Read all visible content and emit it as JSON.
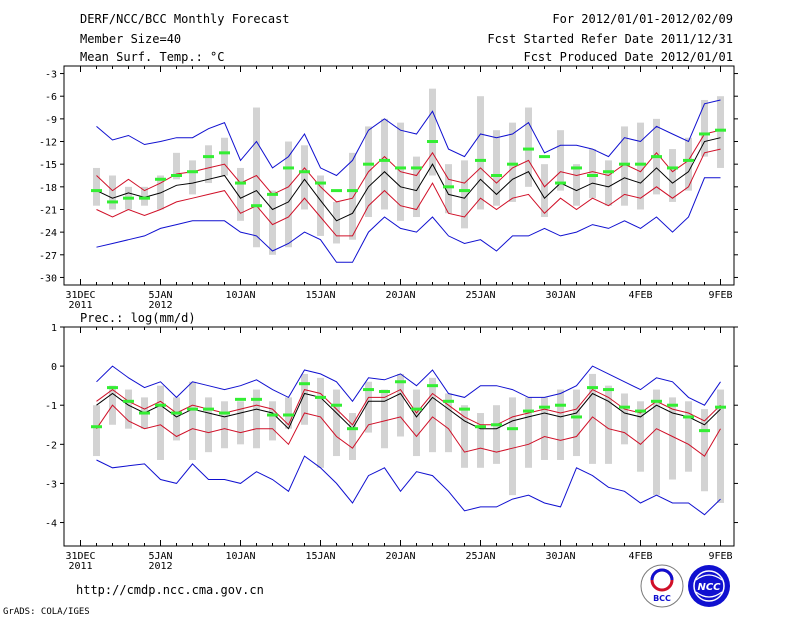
{
  "header": {
    "title": "DERF/NCC/BCC Monthly Forecast",
    "member_size": "Member Size=40",
    "date_range": "For 2012/01/01-2012/02/09",
    "started_refer": "Fcst Started Refer Date 2011/12/31",
    "produced": "Fcst Produced Date 2012/01/01"
  },
  "footer": {
    "url": "http://cmdp.ncc.cma.gov.cn",
    "grads": "GrADS: COLA/IGES",
    "logo_bcc": "BCC",
    "logo_ncc": "NCC"
  },
  "colors": {
    "blue": "#1010d0",
    "red": "#d01028",
    "black": "#000000",
    "green": "#33ee33",
    "gray": "#d3d3d3"
  },
  "chart_data": [
    {
      "type": "line",
      "title": "Mean Surf. Temp.: °C",
      "ylim": [
        -31,
        -2
      ],
      "yticks": [
        -3,
        -6,
        -9,
        -12,
        -15,
        -18,
        -21,
        -24,
        -27,
        -30
      ],
      "ytick_labels": [
        "-3",
        "-6",
        "-9",
        "-12",
        "-15",
        "-18",
        "-21",
        "-24",
        "-27",
        "-30"
      ],
      "x_day_range": [
        0,
        40
      ],
      "xticks": [
        {
          "day": 0,
          "label": "31DEC",
          "sub": "2011"
        },
        {
          "day": 5,
          "label": "5JAN",
          "sub": "2012"
        },
        {
          "day": 10,
          "label": "10JAN",
          "sub": ""
        },
        {
          "day": 15,
          "label": "15JAN",
          "sub": ""
        },
        {
          "day": 20,
          "label": "20JAN",
          "sub": ""
        },
        {
          "day": 25,
          "label": "25JAN",
          "sub": ""
        },
        {
          "day": 30,
          "label": "30JAN",
          "sub": ""
        },
        {
          "day": 35,
          "label": "4FEB",
          "sub": ""
        },
        {
          "day": 40,
          "label": "9FEB",
          "sub": ""
        }
      ],
      "series": [
        {
          "name": "max",
          "color": "blue",
          "values": [
            -10.0,
            -11.8,
            -11.2,
            -12.4,
            -12.0,
            -11.5,
            -11.5,
            -10.3,
            -9.5,
            -14.5,
            -12.0,
            -15.5,
            -14.0,
            -11.0,
            -15.5,
            -16.5,
            -14.5,
            -10.5,
            -9.0,
            -10.5,
            -11.0,
            -8.0,
            -13.0,
            -14.0,
            -11.0,
            -11.5,
            -11.0,
            -9.5,
            -13.5,
            -12.5,
            -12.5,
            -13.0,
            -14.0,
            -11.5,
            -12.0,
            -10.0,
            -11.0,
            -12.0,
            -7.0,
            -6.5
          ]
        },
        {
          "name": "upper",
          "color": "red",
          "values": [
            -16.5,
            -18.5,
            -17.0,
            -18.5,
            -17.5,
            -16.3,
            -16.0,
            -15.5,
            -15.0,
            -17.5,
            -16.5,
            -19.0,
            -18.0,
            -15.5,
            -18.0,
            -20.0,
            -19.5,
            -16.0,
            -14.0,
            -16.0,
            -16.5,
            -13.5,
            -17.0,
            -17.5,
            -15.5,
            -17.5,
            -15.5,
            -14.5,
            -18.0,
            -16.0,
            -16.5,
            -16.0,
            -16.5,
            -15.0,
            -16.0,
            -13.5,
            -16.0,
            -14.5,
            -11.0,
            -10.5
          ]
        },
        {
          "name": "mean",
          "color": "black",
          "values": [
            -18.5,
            -19.5,
            -18.8,
            -19.4,
            -18.8,
            -17.8,
            -17.5,
            -17.0,
            -16.5,
            -19.5,
            -18.5,
            -21.0,
            -20.0,
            -17.0,
            -19.8,
            -22.5,
            -21.5,
            -18.0,
            -16.0,
            -18.0,
            -18.5,
            -15.0,
            -19.0,
            -19.5,
            -17.0,
            -19.0,
            -17.0,
            -16.0,
            -19.5,
            -17.5,
            -18.5,
            -17.5,
            -18.0,
            -16.8,
            -17.5,
            -15.5,
            -17.5,
            -16.0,
            -12.0,
            -11.5
          ]
        },
        {
          "name": "lower",
          "color": "red",
          "values": [
            -21.0,
            -22.0,
            -21.0,
            -21.8,
            -21.0,
            -20.0,
            -19.5,
            -19.0,
            -18.5,
            -21.5,
            -20.5,
            -23.0,
            -22.0,
            -19.5,
            -22.0,
            -24.5,
            -24.5,
            -20.5,
            -18.5,
            -20.5,
            -21.0,
            -17.5,
            -21.5,
            -22.0,
            -19.5,
            -21.0,
            -19.5,
            -19.0,
            -21.5,
            -19.5,
            -21.0,
            -19.5,
            -20.5,
            -19.0,
            -19.5,
            -18.0,
            -19.5,
            -18.0,
            -13.5,
            -13.0
          ]
        },
        {
          "name": "min",
          "color": "blue",
          "values": [
            -26.0,
            -25.5,
            -25.0,
            -24.5,
            -23.5,
            -23.0,
            -22.5,
            -22.5,
            -22.5,
            -24.0,
            -24.5,
            -26.5,
            -25.5,
            -24.0,
            -25.0,
            -28.0,
            -28.0,
            -24.0,
            -22.0,
            -23.5,
            -24.0,
            -22.0,
            -24.5,
            -25.5,
            -25.0,
            -26.5,
            -24.5,
            -24.5,
            -23.5,
            -24.5,
            -24.0,
            -23.0,
            -23.5,
            -22.5,
            -23.5,
            -22.0,
            -24.0,
            -22.0,
            -16.8,
            -16.8
          ]
        }
      ],
      "bars_low": [
        -20.5,
        -21.0,
        -21.0,
        -20.5,
        -21.0,
        -17.0,
        -19.0,
        -17.5,
        -16.5,
        -22.5,
        -26.0,
        -27.0,
        -26.0,
        -21.0,
        -24.5,
        -25.5,
        -25.0,
        -22.0,
        -21.0,
        -22.5,
        -22.0,
        -16.5,
        -21.5,
        -23.5,
        -21.0,
        -20.5,
        -20.0,
        -18.0,
        -22.0,
        -18.5,
        -20.5,
        -19.5,
        -20.5,
        -20.5,
        -21.0,
        -19.0,
        -20.0,
        -18.5,
        -14.0,
        -15.5
      ],
      "bars_high": [
        -15.5,
        -16.5,
        -18.0,
        -18.0,
        -16.5,
        -13.5,
        -14.5,
        -12.5,
        -11.5,
        -15.5,
        -7.5,
        -18.5,
        -12.0,
        -12.5,
        -16.5,
        -20.0,
        -13.5,
        -10.0,
        -9.0,
        -9.5,
        -14.0,
        -5.0,
        -15.0,
        -14.5,
        -6.0,
        -10.5,
        -9.5,
        -7.5,
        -15.0,
        -10.5,
        -15.0,
        -13.0,
        -14.5,
        -10.0,
        -9.5,
        -9.0,
        -13.0,
        -11.5,
        -6.5,
        -6.0
      ],
      "green_marks": [
        -18.5,
        -20.0,
        -19.5,
        -19.5,
        -17.0,
        -16.5,
        -16.0,
        -14.0,
        -13.5,
        -17.5,
        -20.5,
        -19.0,
        -15.5,
        -16.0,
        -17.5,
        -18.5,
        -18.5,
        -15.0,
        -14.5,
        -15.5,
        -15.5,
        -12.0,
        -18.0,
        -18.5,
        -14.5,
        -16.5,
        -15.0,
        -13.0,
        -14.0,
        -17.5,
        -15.5,
        -16.5,
        -16.0,
        -15.0,
        -15.0,
        -14.0,
        -15.5,
        -14.5,
        -11.0,
        -10.5
      ]
    },
    {
      "type": "line",
      "title": "Prec.: log(mm/d)",
      "ylim": [
        -4.6,
        1.0
      ],
      "yticks": [
        1,
        0,
        -1,
        -2,
        -3,
        -4
      ],
      "ytick_labels": [
        "1",
        "0",
        "-1",
        "-2",
        "-3",
        "-4"
      ],
      "x_day_range": [
        0,
        40
      ],
      "xticks": [
        {
          "day": 0,
          "label": "31DEC",
          "sub": "2011"
        },
        {
          "day": 5,
          "label": "5JAN",
          "sub": "2012"
        },
        {
          "day": 10,
          "label": "10JAN",
          "sub": ""
        },
        {
          "day": 15,
          "label": "15JAN",
          "sub": ""
        },
        {
          "day": 20,
          "label": "20JAN",
          "sub": ""
        },
        {
          "day": 25,
          "label": "25JAN",
          "sub": ""
        },
        {
          "day": 30,
          "label": "30JAN",
          "sub": ""
        },
        {
          "day": 35,
          "label": "4FEB",
          "sub": ""
        },
        {
          "day": 40,
          "label": "9FEB",
          "sub": ""
        }
      ],
      "series": [
        {
          "name": "max",
          "color": "blue",
          "values": [
            -0.4,
            0.0,
            -0.3,
            -0.55,
            -0.4,
            -0.8,
            -0.4,
            -0.5,
            -0.6,
            -0.5,
            -0.35,
            -0.6,
            -0.8,
            -0.1,
            -0.2,
            -0.4,
            -0.9,
            -0.3,
            -0.35,
            -0.2,
            -0.5,
            -0.1,
            -0.7,
            -0.8,
            -0.5,
            -0.5,
            -0.6,
            -0.8,
            -0.8,
            -0.7,
            -0.5,
            0.0,
            -0.2,
            -0.4,
            -0.6,
            -0.3,
            -0.4,
            -0.8,
            -1.0,
            -0.4
          ]
        },
        {
          "name": "upper",
          "color": "red",
          "values": [
            -0.9,
            -0.6,
            -0.9,
            -1.1,
            -0.9,
            -1.2,
            -1.0,
            -1.1,
            -1.2,
            -1.1,
            -1.0,
            -1.1,
            -1.5,
            -0.6,
            -0.7,
            -1.1,
            -1.5,
            -0.8,
            -0.8,
            -0.6,
            -1.2,
            -0.7,
            -1.0,
            -1.3,
            -1.5,
            -1.5,
            -1.3,
            -1.2,
            -1.1,
            -1.2,
            -1.1,
            -0.6,
            -0.8,
            -1.1,
            -1.2,
            -0.9,
            -1.1,
            -1.2,
            -1.4,
            -1.0
          ]
        },
        {
          "name": "mean",
          "color": "black",
          "values": [
            -1.0,
            -0.7,
            -1.0,
            -1.2,
            -1.0,
            -1.3,
            -1.1,
            -1.2,
            -1.3,
            -1.2,
            -1.1,
            -1.2,
            -1.6,
            -0.7,
            -0.8,
            -1.2,
            -1.6,
            -0.9,
            -0.9,
            -0.7,
            -1.3,
            -0.8,
            -1.1,
            -1.4,
            -1.6,
            -1.6,
            -1.4,
            -1.3,
            -1.2,
            -1.3,
            -1.2,
            -0.7,
            -0.9,
            -1.2,
            -1.3,
            -1.0,
            -1.2,
            -1.3,
            -1.5,
            -1.1
          ]
        },
        {
          "name": "lower",
          "color": "red",
          "values": [
            -1.6,
            -1.0,
            -1.4,
            -1.6,
            -1.5,
            -1.8,
            -1.6,
            -1.7,
            -1.6,
            -1.7,
            -1.6,
            -1.6,
            -2.0,
            -1.2,
            -1.3,
            -1.8,
            -2.1,
            -1.5,
            -1.4,
            -1.3,
            -1.8,
            -1.3,
            -1.6,
            -2.2,
            -2.1,
            -2.2,
            -2.1,
            -2.0,
            -1.8,
            -1.9,
            -1.8,
            -1.3,
            -1.6,
            -1.7,
            -2.0,
            -1.6,
            -1.8,
            -2.0,
            -2.3,
            -1.6
          ]
        },
        {
          "name": "min",
          "color": "blue",
          "values": [
            -2.4,
            -2.6,
            -2.55,
            -2.5,
            -2.9,
            -3.0,
            -2.5,
            -2.9,
            -2.9,
            -3.0,
            -2.7,
            -2.9,
            -3.2,
            -2.3,
            -2.6,
            -3.0,
            -3.5,
            -2.8,
            -2.6,
            -3.2,
            -2.7,
            -2.8,
            -3.2,
            -3.7,
            -3.6,
            -3.6,
            -3.4,
            -3.3,
            -3.5,
            -3.6,
            -2.6,
            -2.8,
            -3.1,
            -3.2,
            -3.5,
            -3.3,
            -3.5,
            -3.5,
            -3.8,
            -3.4
          ]
        }
      ],
      "bars_low": [
        -2.3,
        -1.5,
        -1.6,
        -1.6,
        -2.4,
        -1.9,
        -2.4,
        -2.2,
        -2.1,
        -2.0,
        -2.1,
        -1.9,
        -1.6,
        -1.5,
        -2.6,
        -2.3,
        -2.4,
        -1.7,
        -2.1,
        -1.8,
        -2.3,
        -2.2,
        -2.2,
        -2.6,
        -2.6,
        -2.5,
        -3.3,
        -2.6,
        -2.4,
        -2.4,
        -2.3,
        -2.5,
        -2.5,
        -2.0,
        -2.7,
        -3.3,
        -2.9,
        -2.7,
        -3.2,
        -3.5
      ],
      "bars_high": [
        -1.0,
        -0.5,
        -0.6,
        -0.8,
        -0.5,
        -0.8,
        -0.4,
        -0.8,
        -0.9,
        -0.9,
        -0.6,
        -0.9,
        -0.8,
        -0.2,
        -0.3,
        -0.6,
        -1.2,
        -0.4,
        -0.6,
        -0.2,
        -0.6,
        -0.3,
        -0.7,
        -1.0,
        -1.2,
        -1.0,
        -0.8,
        -0.8,
        -0.8,
        -0.6,
        -0.6,
        -0.2,
        -0.5,
        -0.7,
        -0.9,
        -0.6,
        -0.8,
        -0.9,
        -1.1,
        -0.6
      ],
      "green_marks": [
        -1.55,
        -0.55,
        -0.9,
        -1.2,
        -1.0,
        -1.2,
        -1.1,
        -1.1,
        -1.2,
        -0.85,
        -0.85,
        -1.25,
        -1.25,
        -0.45,
        -0.8,
        -1.0,
        -1.6,
        -0.6,
        -0.65,
        -0.4,
        -1.1,
        -0.5,
        -0.9,
        -1.1,
        -1.55,
        -1.5,
        -1.6,
        -1.15,
        -1.05,
        -1.0,
        -1.3,
        -0.55,
        -0.6,
        -1.05,
        -1.15,
        -0.9,
        -1.0,
        -1.3,
        -1.65,
        -1.05
      ]
    }
  ]
}
